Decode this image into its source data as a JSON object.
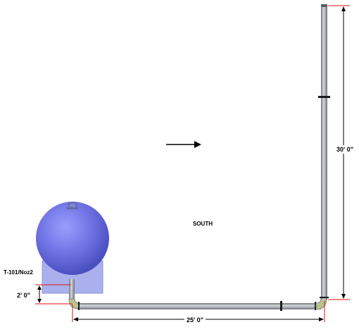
{
  "labels": {
    "direction": "SOUTH",
    "nozzle": "T-101/Noz2"
  },
  "dimensions": {
    "vertical_riser": "30' 0\"",
    "horizontal_run": "25' 0\"",
    "nozzle_drop": "2' 0\""
  },
  "colors": {
    "vessel": "#6b6fe0",
    "pipe": "#9aa0a8",
    "dimension_marker": "#e01010",
    "dimension_line": "#000000"
  },
  "icons": {
    "flow_arrow": "arrow-right-icon"
  }
}
